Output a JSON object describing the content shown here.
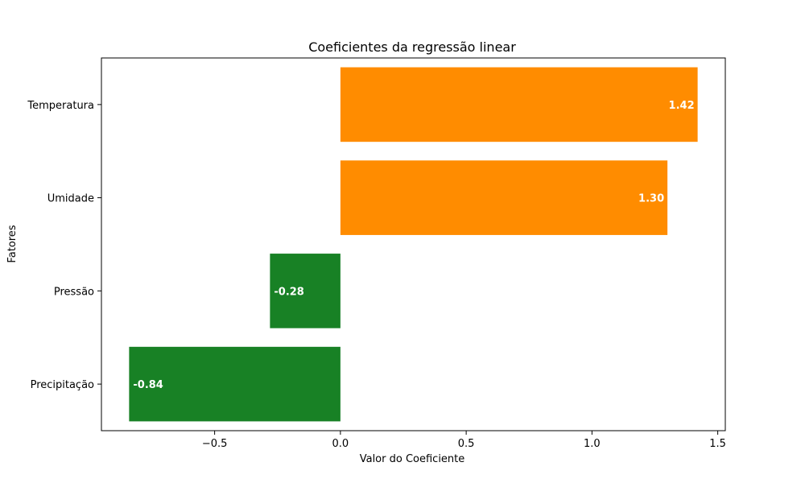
{
  "chart_data": {
    "type": "bar",
    "orientation": "horizontal",
    "title": "Coeficientes da regressão linear",
    "xlabel": "Valor do Coeficiente",
    "ylabel": "Fatores",
    "categories": [
      "Precipitação",
      "Pressão",
      "Umidade",
      "Temperatura"
    ],
    "values": [
      -0.84,
      -0.28,
      1.3,
      1.42
    ],
    "value_labels": [
      "-0.84",
      "-0.28",
      "1.30",
      "1.42"
    ],
    "xlim": [
      -0.95,
      1.53
    ],
    "xticks": [
      -0.5,
      0.0,
      0.5,
      1.0,
      1.5
    ],
    "xtick_labels": [
      "−0.5",
      "0.0",
      "0.5",
      "1.0",
      "1.5"
    ],
    "colors": {
      "positive": "#ff8c00",
      "negative": "#188125"
    },
    "grid": false,
    "legend": "none"
  }
}
